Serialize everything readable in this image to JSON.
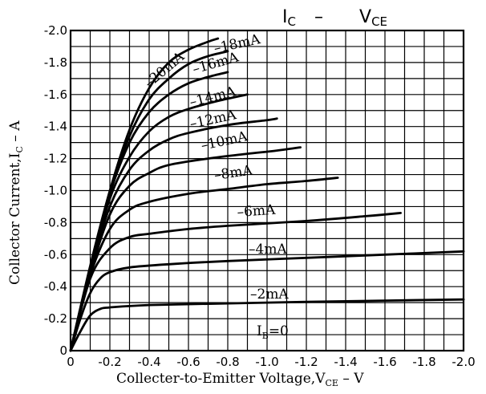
{
  "chart_data": {
    "type": "line",
    "title": {
      "main": "I",
      "main_sub": "C",
      "sep": " – ",
      "right": "V",
      "right_sub": "CE"
    },
    "xlabel": {
      "prefix": "Collecter-to-Emitter Voltage,V",
      "sub": "CE",
      "suffix": " – V"
    },
    "ylabel": {
      "prefix": "Collector Current,I",
      "sub": "C",
      "suffix": " – A"
    },
    "xlim": [
      0,
      -2.0
    ],
    "ylim": [
      0,
      -2.0
    ],
    "x_ticks": [
      "0",
      "-0.2",
      "-0.4",
      "-0.6",
      "-0.8",
      "-1.0",
      "-1.2",
      "-1.4",
      "-1.6",
      "-1.8",
      "-2.0"
    ],
    "y_ticks": [
      "0",
      "-0.2",
      "-0.4",
      "-0.6",
      "-0.8",
      "-1.0",
      "-1.2",
      "-1.4",
      "-1.6",
      "-1.8",
      "-2.0"
    ],
    "grid": true,
    "ib_zero_label": "I",
    "ib_zero_sub": "B",
    "ib_zero_rest": "=0",
    "series": [
      {
        "name": "–2mA",
        "points": [
          [
            0,
            0
          ],
          [
            -0.05,
            -0.12
          ],
          [
            -0.1,
            -0.22
          ],
          [
            -0.15,
            -0.26
          ],
          [
            -0.2,
            -0.27
          ],
          [
            -0.4,
            -0.285
          ],
          [
            -0.8,
            -0.295
          ],
          [
            -1.2,
            -0.305
          ],
          [
            -1.6,
            -0.313
          ],
          [
            -2.0,
            -0.32
          ]
        ]
      },
      {
        "name": "–4mA",
        "points": [
          [
            0,
            0
          ],
          [
            -0.05,
            -0.2
          ],
          [
            -0.1,
            -0.36
          ],
          [
            -0.15,
            -0.45
          ],
          [
            -0.2,
            -0.49
          ],
          [
            -0.3,
            -0.52
          ],
          [
            -0.5,
            -0.54
          ],
          [
            -0.8,
            -0.56
          ],
          [
            -1.2,
            -0.58
          ],
          [
            -1.6,
            -0.6
          ],
          [
            -2.0,
            -0.62
          ]
        ]
      },
      {
        "name": "–6mA",
        "points": [
          [
            0,
            0
          ],
          [
            -0.1,
            -0.45
          ],
          [
            -0.2,
            -0.64
          ],
          [
            -0.3,
            -0.71
          ],
          [
            -0.4,
            -0.73
          ],
          [
            -0.6,
            -0.76
          ],
          [
            -0.8,
            -0.78
          ],
          [
            -1.2,
            -0.81
          ],
          [
            -1.5,
            -0.84
          ],
          [
            -1.68,
            -0.86
          ]
        ]
      },
      {
        "name": "–8mA",
        "points": [
          [
            0,
            0
          ],
          [
            -0.1,
            -0.47
          ],
          [
            -0.2,
            -0.76
          ],
          [
            -0.3,
            -0.88
          ],
          [
            -0.4,
            -0.93
          ],
          [
            -0.6,
            -0.98
          ],
          [
            -0.8,
            -1.01
          ],
          [
            -1.0,
            -1.04
          ],
          [
            -1.2,
            -1.06
          ],
          [
            -1.36,
            -1.08
          ]
        ]
      },
      {
        "name": "–10mA",
        "points": [
          [
            0,
            0
          ],
          [
            -0.1,
            -0.48
          ],
          [
            -0.2,
            -0.85
          ],
          [
            -0.3,
            -1.03
          ],
          [
            -0.4,
            -1.11
          ],
          [
            -0.5,
            -1.16
          ],
          [
            -0.7,
            -1.2
          ],
          [
            -0.9,
            -1.23
          ],
          [
            -1.05,
            -1.25
          ],
          [
            -1.17,
            -1.27
          ]
        ]
      },
      {
        "name": "–12mA",
        "points": [
          [
            0,
            0
          ],
          [
            -0.1,
            -0.5
          ],
          [
            -0.2,
            -0.9
          ],
          [
            -0.3,
            -1.13
          ],
          [
            -0.4,
            -1.25
          ],
          [
            -0.5,
            -1.32
          ],
          [
            -0.6,
            -1.36
          ],
          [
            -0.8,
            -1.41
          ],
          [
            -1.0,
            -1.44
          ],
          [
            -1.05,
            -1.45
          ]
        ]
      },
      {
        "name": "–14mA",
        "points": [
          [
            0,
            0
          ],
          [
            -0.1,
            -0.51
          ],
          [
            -0.2,
            -0.95
          ],
          [
            -0.3,
            -1.21
          ],
          [
            -0.4,
            -1.37
          ],
          [
            -0.5,
            -1.46
          ],
          [
            -0.6,
            -1.51
          ],
          [
            -0.75,
            -1.56
          ],
          [
            -0.9,
            -1.6
          ]
        ]
      },
      {
        "name": "–16mA",
        "points": [
          [
            0,
            0
          ],
          [
            -0.1,
            -0.52
          ],
          [
            -0.2,
            -0.98
          ],
          [
            -0.3,
            -1.3
          ],
          [
            -0.4,
            -1.49
          ],
          [
            -0.5,
            -1.6
          ],
          [
            -0.6,
            -1.67
          ],
          [
            -0.7,
            -1.71
          ],
          [
            -0.8,
            -1.74
          ]
        ]
      },
      {
        "name": "–18mA",
        "points": [
          [
            0,
            0
          ],
          [
            -0.1,
            -0.52
          ],
          [
            -0.2,
            -0.99
          ],
          [
            -0.3,
            -1.34
          ],
          [
            -0.4,
            -1.57
          ],
          [
            -0.5,
            -1.7
          ],
          [
            -0.6,
            -1.79
          ],
          [
            -0.7,
            -1.84
          ],
          [
            -0.8,
            -1.87
          ]
        ]
      },
      {
        "name": "–20mA",
        "points": [
          [
            0,
            0
          ],
          [
            -0.1,
            -0.53
          ],
          [
            -0.2,
            -1.0
          ],
          [
            -0.3,
            -1.38
          ],
          [
            -0.4,
            -1.64
          ],
          [
            -0.5,
            -1.8
          ],
          [
            -0.6,
            -1.88
          ],
          [
            -0.7,
            -1.93
          ],
          [
            -0.75,
            -1.95
          ]
        ]
      }
    ]
  }
}
